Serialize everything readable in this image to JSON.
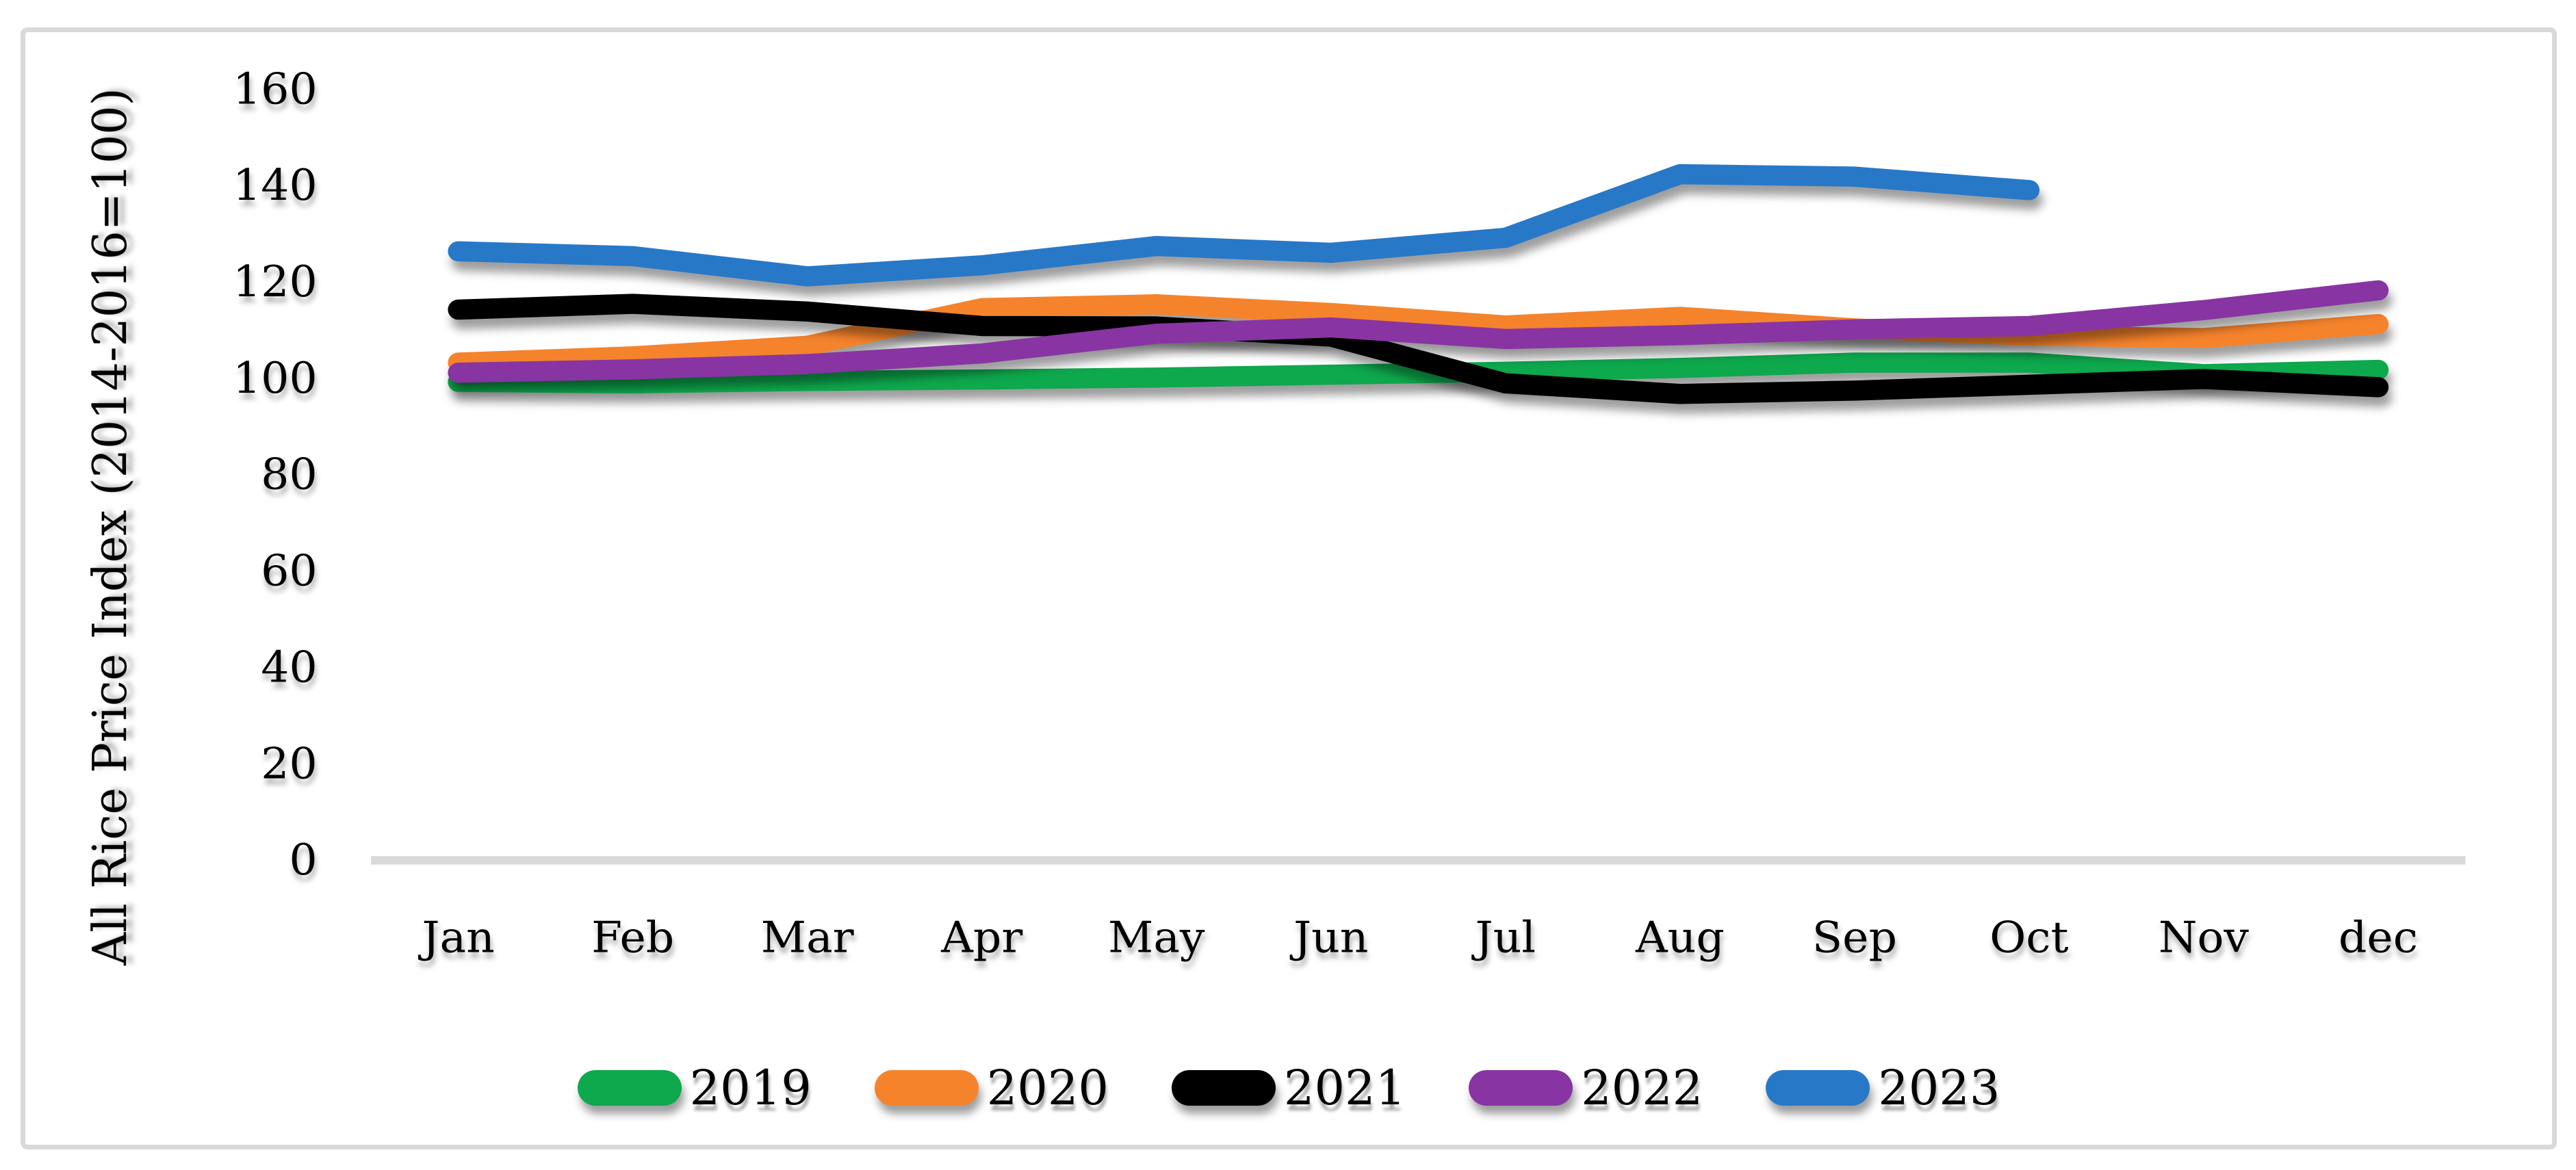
{
  "figure": {
    "border_color": "#d9d9d9",
    "background_color": "#ffffff"
  },
  "chart_data": {
    "type": "line",
    "title": "",
    "xlabel": "",
    "ylabel": "All Rice Price Index (2014-2016=100)",
    "categories": [
      "Jan",
      "Feb",
      "Mar",
      "Apr",
      "May",
      "Jun",
      "Jul",
      "Aug",
      "Sep",
      "Oct",
      "Nov",
      "dec"
    ],
    "ylim": [
      0,
      160
    ],
    "ytick_step": 20,
    "yticks": [
      0,
      20,
      40,
      60,
      80,
      100,
      120,
      140,
      160
    ],
    "grid": false,
    "legend_position": "bottom",
    "axis_color": "#d9d9d9",
    "text_color": "#000000",
    "line_width": 31,
    "series": [
      {
        "name": "2019",
        "color": "#0ea84d",
        "values": [
          99.3,
          99.0,
          99.5,
          99.8,
          100.2,
          100.8,
          101.4,
          102.2,
          103.3,
          103.3,
          100.9,
          101.8
        ]
      },
      {
        "name": "2020",
        "color": "#f5832c",
        "values": [
          103.3,
          104.6,
          106.8,
          114.6,
          115.4,
          113.6,
          111.0,
          112.8,
          110.4,
          108.9,
          108.4,
          111.3
        ]
      },
      {
        "name": "2021",
        "color": "#000000",
        "values": [
          114.3,
          115.5,
          113.9,
          110.9,
          110.8,
          108.7,
          99.0,
          96.8,
          97.5,
          98.7,
          99.9,
          98.2
        ]
      },
      {
        "name": "2022",
        "color": "#8834a3",
        "values": [
          101.2,
          101.9,
          103.0,
          105.2,
          109.3,
          110.6,
          108.2,
          109.0,
          110.2,
          110.9,
          114.2,
          118.3
        ]
      },
      {
        "name": "2023",
        "color": "#2878c8",
        "values": [
          126.4,
          125.4,
          121.2,
          123.5,
          127.5,
          126.1,
          129.2,
          142.4,
          141.9,
          139.1,
          null,
          null
        ]
      }
    ]
  }
}
